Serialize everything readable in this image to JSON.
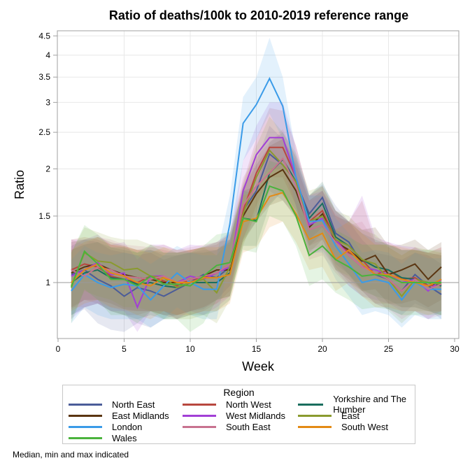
{
  "chart_data": {
    "type": "line",
    "title": "Ratio of deaths/100k to 2010-2019 reference range",
    "xlabel": "Week",
    "ylabel": "Ratio",
    "xlim": [
      0,
      30
    ],
    "ylim": [
      0.71,
      4.6
    ],
    "yscale": "log",
    "reference_line": 1,
    "xticks": [
      0,
      5,
      10,
      15,
      20,
      25,
      30
    ],
    "yticks": [
      1,
      1.5,
      2,
      2.5,
      3,
      3.5,
      4,
      4.5
    ],
    "ytick_labels": [
      "1",
      "1.5",
      "2",
      "2.5",
      "3",
      "3.5",
      "4",
      "4.5"
    ],
    "grid": true,
    "legend_title": "Region",
    "legend_position": "bottom",
    "footnote": "Median, min and max indicated",
    "x": [
      1,
      2,
      3,
      4,
      5,
      6,
      7,
      8,
      9,
      10,
      11,
      12,
      13,
      14,
      15,
      16,
      17,
      18,
      19,
      20,
      21,
      22,
      23,
      24,
      25,
      26,
      27,
      28,
      29
    ],
    "series": [
      {
        "name": "North East",
        "color": "#4b5c99",
        "values": [
          1.05,
          1.08,
          1.02,
          0.98,
          0.92,
          0.97,
          0.95,
          0.92,
          0.96,
          1.0,
          1.05,
          1.03,
          1.1,
          1.55,
          1.75,
          2.19,
          2.05,
          1.85,
          1.52,
          1.68,
          1.35,
          1.28,
          1.12,
          1.05,
          1.02,
          0.95,
          1.05,
          0.98,
          0.93
        ],
        "band_min": [
          0.82,
          0.85,
          0.78,
          0.75,
          0.74,
          0.78,
          0.76,
          0.8,
          0.82,
          0.84,
          0.85,
          0.9,
          0.98,
          1.3,
          1.45,
          1.75,
          1.65,
          1.5,
          1.3,
          1.4,
          1.15,
          1.05,
          0.95,
          0.88,
          0.85,
          0.82,
          0.88,
          0.85,
          0.8
        ],
        "band_max": [
          1.25,
          1.3,
          1.28,
          1.22,
          1.2,
          1.18,
          1.2,
          1.15,
          1.18,
          1.2,
          1.22,
          1.22,
          1.3,
          1.8,
          2.1,
          2.6,
          2.4,
          2.1,
          1.7,
          1.82,
          1.6,
          1.45,
          1.3,
          1.2,
          1.18,
          1.15,
          1.2,
          1.18,
          1.12
        ]
      },
      {
        "name": "North West",
        "color": "#b8473e",
        "values": [
          1.08,
          1.12,
          1.1,
          1.04,
          1.02,
          1.0,
          1.04,
          1.01,
          0.98,
          1.02,
          1.03,
          1.06,
          1.12,
          1.55,
          1.95,
          2.28,
          2.28,
          1.9,
          1.45,
          1.55,
          1.3,
          1.2,
          1.15,
          1.05,
          1.08,
          1.02,
          1.03,
          0.98,
          0.99
        ],
        "band_min": [
          0.85,
          0.9,
          0.88,
          0.84,
          0.82,
          0.82,
          0.84,
          0.82,
          0.8,
          0.82,
          0.84,
          0.88,
          0.95,
          1.3,
          1.6,
          1.9,
          1.9,
          1.6,
          1.25,
          1.3,
          1.1,
          1.0,
          0.95,
          0.88,
          0.88,
          0.86,
          0.86,
          0.84,
          0.84
        ],
        "band_max": [
          1.3,
          1.32,
          1.3,
          1.26,
          1.24,
          1.22,
          1.24,
          1.22,
          1.2,
          1.22,
          1.24,
          1.26,
          1.35,
          1.85,
          2.4,
          2.9,
          2.85,
          2.3,
          1.7,
          1.8,
          1.55,
          1.45,
          1.65,
          1.28,
          1.28,
          1.22,
          1.22,
          1.2,
          1.18
        ]
      },
      {
        "name": "Yorkshire and The Humber",
        "color": "#1a6e5e",
        "values": [
          1.0,
          1.06,
          1.08,
          1.03,
          1.02,
          0.99,
          1.0,
          0.98,
          0.97,
          1.0,
          1.0,
          1.0,
          1.06,
          1.48,
          1.46,
          1.95,
          2.12,
          1.85,
          1.48,
          1.62,
          1.32,
          1.25,
          1.15,
          1.1,
          1.08,
          1.03,
          1.02,
          1.0,
          0.98
        ],
        "band_min": [
          0.82,
          0.86,
          0.88,
          0.84,
          0.82,
          0.8,
          0.82,
          0.8,
          0.8,
          0.82,
          0.82,
          0.84,
          0.9,
          1.25,
          1.25,
          1.6,
          1.75,
          1.55,
          1.25,
          1.35,
          1.12,
          1.05,
          0.96,
          0.92,
          0.9,
          0.86,
          0.86,
          0.84,
          0.82
        ],
        "band_max": [
          1.22,
          1.26,
          1.28,
          1.24,
          1.22,
          1.2,
          1.22,
          1.18,
          1.18,
          1.2,
          1.2,
          1.22,
          1.28,
          1.75,
          1.8,
          2.35,
          2.5,
          2.15,
          1.7,
          1.85,
          1.55,
          1.45,
          1.35,
          1.3,
          1.26,
          1.22,
          1.22,
          1.2,
          1.18
        ]
      },
      {
        "name": "East Midlands",
        "color": "#5a3511",
        "values": [
          1.06,
          1.1,
          1.12,
          1.08,
          1.05,
          1.03,
          1.02,
          1.0,
          1.0,
          1.02,
          1.04,
          1.08,
          1.08,
          1.5,
          1.72,
          1.9,
          1.99,
          1.75,
          1.4,
          1.52,
          1.28,
          1.22,
          1.14,
          1.18,
          1.05,
          1.08,
          1.12,
          1.02,
          1.1
        ],
        "band_min": [
          0.86,
          0.9,
          0.9,
          0.88,
          0.85,
          0.84,
          0.84,
          0.82,
          0.82,
          0.84,
          0.86,
          0.9,
          0.92,
          1.28,
          1.45,
          1.6,
          1.65,
          1.48,
          1.2,
          1.3,
          1.08,
          1.02,
          0.95,
          0.96,
          0.88,
          0.88,
          0.9,
          0.86,
          0.9
        ],
        "band_max": [
          1.28,
          1.3,
          1.32,
          1.28,
          1.25,
          1.22,
          1.22,
          1.2,
          1.2,
          1.22,
          1.24,
          1.28,
          1.3,
          1.78,
          2.05,
          2.3,
          2.4,
          2.05,
          1.65,
          1.75,
          1.5,
          1.45,
          1.38,
          1.4,
          1.25,
          1.26,
          1.3,
          1.22,
          1.28
        ]
      },
      {
        "name": "West Midlands",
        "color": "#a23fd6",
        "values": [
          1.04,
          1.08,
          1.13,
          1.05,
          1.06,
          0.86,
          1.04,
          1.04,
          1.0,
          1.04,
          1.02,
          1.06,
          1.1,
          1.75,
          2.18,
          2.42,
          2.42,
          1.9,
          1.42,
          1.48,
          1.3,
          1.18,
          1.1,
          1.08,
          1.05,
          1.0,
          1.02,
          0.95,
          1.02
        ],
        "band_min": [
          0.8,
          0.86,
          0.88,
          0.84,
          0.84,
          0.74,
          0.84,
          0.84,
          0.8,
          0.84,
          0.82,
          0.86,
          0.92,
          1.45,
          1.8,
          2.0,
          2.0,
          1.6,
          1.18,
          1.22,
          1.08,
          0.98,
          0.92,
          0.9,
          0.88,
          0.84,
          0.84,
          0.8,
          0.84
        ],
        "band_max": [
          1.3,
          1.3,
          1.34,
          1.26,
          1.28,
          1.15,
          1.26,
          1.26,
          1.22,
          1.26,
          1.25,
          1.28,
          1.36,
          2.1,
          2.6,
          3.0,
          3.0,
          2.3,
          1.7,
          1.75,
          1.55,
          1.45,
          1.7,
          1.32,
          1.28,
          1.25,
          1.24,
          1.2,
          1.24
        ]
      },
      {
        "name": "East",
        "color": "#8a9a2e",
        "values": [
          0.98,
          1.2,
          1.14,
          1.13,
          1.08,
          1.09,
          1.04,
          1.03,
          0.97,
          1.0,
          1.02,
          0.94,
          1.1,
          1.52,
          1.9,
          2.24,
          2.05,
          1.85,
          1.45,
          1.5,
          1.3,
          1.25,
          1.15,
          1.12,
          1.02,
          0.92,
          1.02,
          1.0,
          0.99
        ],
        "band_min": [
          0.8,
          0.95,
          0.92,
          0.9,
          0.86,
          0.86,
          0.84,
          0.84,
          0.8,
          0.8,
          0.82,
          0.78,
          0.9,
          1.25,
          1.55,
          1.85,
          1.7,
          1.55,
          1.22,
          1.25,
          1.08,
          1.04,
          0.95,
          0.92,
          0.84,
          0.78,
          0.84,
          0.84,
          0.82
        ],
        "band_max": [
          1.2,
          1.4,
          1.36,
          1.32,
          1.3,
          1.3,
          1.26,
          1.24,
          1.2,
          1.22,
          1.24,
          1.18,
          1.3,
          1.82,
          2.3,
          2.75,
          2.5,
          2.2,
          1.75,
          1.8,
          1.55,
          1.5,
          1.38,
          1.34,
          1.24,
          1.18,
          1.24,
          1.22,
          1.2
        ]
      },
      {
        "name": "London",
        "color": "#3a9be8",
        "values": [
          0.95,
          1.05,
          1.0,
          0.97,
          0.99,
          0.98,
          0.9,
          0.98,
          1.06,
          1.0,
          0.96,
          0.96,
          1.43,
          2.64,
          2.96,
          3.47,
          2.93,
          1.9,
          1.45,
          1.46,
          1.25,
          1.12,
          1.0,
          1.02,
          1.0,
          0.9,
          1.0,
          0.96,
          0.96
        ],
        "band_min": [
          0.78,
          0.86,
          0.82,
          0.8,
          0.8,
          0.8,
          0.76,
          0.8,
          0.86,
          0.82,
          0.8,
          0.8,
          1.15,
          2.1,
          2.4,
          2.8,
          2.4,
          1.58,
          1.2,
          1.2,
          1.02,
          0.92,
          0.82,
          0.84,
          0.82,
          0.76,
          0.82,
          0.8,
          0.8
        ],
        "band_max": [
          1.15,
          1.25,
          1.2,
          1.18,
          1.2,
          1.18,
          1.12,
          1.18,
          1.25,
          1.2,
          1.18,
          1.18,
          1.7,
          3.1,
          3.5,
          4.45,
          3.5,
          2.2,
          1.7,
          1.7,
          1.48,
          1.35,
          1.2,
          1.22,
          1.2,
          1.12,
          1.2,
          1.16,
          1.16
        ]
      },
      {
        "name": "South East",
        "color": "#c8728f",
        "values": [
          1.08,
          1.04,
          1.1,
          1.08,
          1.04,
          1.03,
          1.02,
          1.04,
          1.0,
          1.02,
          1.04,
          1.06,
          1.12,
          1.6,
          1.8,
          1.95,
          2.13,
          1.8,
          1.38,
          1.42,
          1.28,
          1.18,
          1.1,
          1.06,
          1.02,
          0.95,
          1.02,
          0.96,
          0.99
        ],
        "band_min": [
          0.86,
          0.86,
          0.88,
          0.86,
          0.84,
          0.84,
          0.84,
          0.84,
          0.82,
          0.84,
          0.86,
          0.88,
          0.92,
          1.32,
          1.5,
          1.62,
          1.75,
          1.5,
          1.15,
          1.18,
          1.06,
          0.98,
          0.92,
          0.88,
          0.85,
          0.8,
          0.84,
          0.8,
          0.82
        ],
        "band_max": [
          1.3,
          1.26,
          1.32,
          1.3,
          1.26,
          1.25,
          1.24,
          1.26,
          1.22,
          1.24,
          1.26,
          1.28,
          1.34,
          1.9,
          2.15,
          2.35,
          2.55,
          2.15,
          1.65,
          1.7,
          1.52,
          1.42,
          1.45,
          1.28,
          1.24,
          1.18,
          1.24,
          1.18,
          1.2
        ]
      },
      {
        "name": "South West",
        "color": "#e38a14",
        "values": [
          1.0,
          1.08,
          1.12,
          1.06,
          1.04,
          1.0,
          0.98,
          1.03,
          1.0,
          1.0,
          1.03,
          1.03,
          1.05,
          1.45,
          1.48,
          1.69,
          1.73,
          1.52,
          1.3,
          1.35,
          1.15,
          1.22,
          1.12,
          1.05,
          1.05,
          1.02,
          1.0,
          0.98,
          1.02
        ],
        "band_min": [
          0.84,
          0.88,
          0.9,
          0.86,
          0.85,
          0.82,
          0.8,
          0.84,
          0.82,
          0.82,
          0.84,
          0.84,
          0.88,
          1.2,
          1.24,
          1.4,
          1.45,
          1.28,
          1.08,
          1.1,
          0.95,
          1.0,
          0.92,
          0.86,
          0.86,
          0.84,
          0.84,
          0.82,
          0.84
        ],
        "band_max": [
          1.22,
          1.28,
          1.32,
          1.26,
          1.25,
          1.22,
          1.2,
          1.24,
          1.22,
          1.22,
          1.24,
          1.24,
          1.26,
          1.7,
          1.75,
          2.0,
          2.05,
          1.78,
          1.52,
          1.58,
          1.38,
          1.45,
          1.35,
          1.26,
          1.26,
          1.24,
          1.22,
          1.2,
          1.24
        ]
      },
      {
        "name": "Wales",
        "color": "#4ab33c",
        "values": [
          0.97,
          1.21,
          1.12,
          1.02,
          1.02,
          0.98,
          1.04,
          0.99,
          0.99,
          0.98,
          1.04,
          1.11,
          1.13,
          1.48,
          1.45,
          1.8,
          1.75,
          1.5,
          1.18,
          1.25,
          1.15,
          1.1,
          1.04,
          1.05,
          1.04,
          1.0,
          1.0,
          1.0,
          1.0
        ],
        "band_min": [
          0.78,
          0.96,
          0.9,
          0.82,
          0.82,
          0.78,
          0.84,
          0.8,
          0.8,
          0.74,
          0.78,
          0.9,
          0.92,
          1.22,
          1.2,
          1.5,
          1.45,
          1.25,
          0.98,
          1.02,
          0.94,
          0.9,
          0.85,
          0.86,
          0.85,
          0.82,
          0.82,
          0.82,
          0.82
        ],
        "band_max": [
          1.2,
          1.42,
          1.34,
          1.24,
          1.24,
          1.2,
          1.26,
          1.2,
          1.2,
          1.2,
          1.25,
          1.34,
          1.36,
          1.75,
          1.72,
          2.1,
          2.05,
          1.78,
          1.42,
          1.5,
          1.38,
          1.32,
          1.26,
          1.26,
          1.26,
          1.22,
          1.22,
          1.22,
          1.22
        ]
      }
    ]
  }
}
